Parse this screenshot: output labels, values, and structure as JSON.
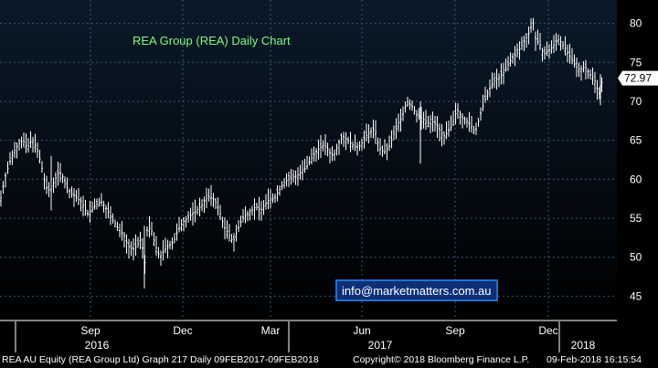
{
  "chart_data": {
    "type": "candlestick",
    "title": "REA Group (REA) Daily Chart",
    "watermark": "info@marketmatters.com.au",
    "last_price": "72.97",
    "y_ticks": [
      "45",
      "50",
      "55",
      "60",
      "65",
      "70",
      "75",
      "80"
    ],
    "ylim": [
      42,
      83
    ],
    "x_month_ticks": [
      "Sep",
      "Dec",
      "Mar",
      "Jun",
      "Sep",
      "Dec"
    ],
    "x_year_labels": [
      "2016",
      "2017",
      "2018"
    ],
    "grid": true,
    "series_color": "#ffffff",
    "grid_color": "#3a5670",
    "background_colors": [
      "#0a1a2a",
      "#000000"
    ],
    "title_color": "#7CFC7C",
    "watermark_border": "#1e6fd0",
    "watermark_bg": "#0c2f78",
    "price_path": [
      [
        0,
        57
      ],
      [
        5,
        60
      ],
      [
        10,
        62
      ],
      [
        15,
        63.5
      ],
      [
        20,
        64.5
      ],
      [
        25,
        65
      ],
      [
        30,
        64
      ],
      [
        35,
        65.2
      ],
      [
        40,
        64
      ],
      [
        45,
        62
      ],
      [
        50,
        59
      ],
      [
        55,
        58.5
      ],
      [
        60,
        60
      ],
      [
        65,
        61
      ],
      [
        70,
        60
      ],
      [
        75,
        58.5
      ],
      [
        80,
        58
      ],
      [
        85,
        57.5
      ],
      [
        90,
        57
      ],
      [
        95,
        55.5
      ],
      [
        100,
        56
      ],
      [
        105,
        56.8
      ],
      [
        110,
        57.2
      ],
      [
        115,
        56.5
      ],
      [
        120,
        55.5
      ],
      [
        125,
        54.5
      ],
      [
        130,
        53.5
      ],
      [
        135,
        53
      ],
      [
        140,
        51.5
      ],
      [
        145,
        51
      ],
      [
        150,
        51.5
      ],
      [
        155,
        52.5
      ],
      [
        158,
        48.5
      ],
      [
        161,
        53.5
      ],
      [
        165,
        53.8
      ],
      [
        170,
        51.5
      ],
      [
        175,
        50
      ],
      [
        180,
        51
      ],
      [
        185,
        51.5
      ],
      [
        190,
        52
      ],
      [
        195,
        53.5
      ],
      [
        200,
        54.5
      ],
      [
        205,
        55
      ],
      [
        210,
        55.5
      ],
      [
        215,
        56
      ],
      [
        220,
        56.5
      ],
      [
        225,
        57.5
      ],
      [
        230,
        57.8
      ],
      [
        235,
        57.3
      ],
      [
        240,
        56
      ],
      [
        245,
        54
      ],
      [
        250,
        53
      ],
      [
        255,
        52
      ],
      [
        260,
        53.5
      ],
      [
        265,
        55
      ],
      [
        270,
        55.5
      ],
      [
        275,
        56
      ],
      [
        280,
        56.5
      ],
      [
        285,
        56
      ],
      [
        290,
        56.8
      ],
      [
        295,
        57.5
      ],
      [
        300,
        57.5
      ],
      [
        305,
        58.5
      ],
      [
        310,
        59.5
      ],
      [
        315,
        60
      ],
      [
        320,
        60.2
      ],
      [
        325,
        60.5
      ],
      [
        330,
        61
      ],
      [
        335,
        61.5
      ],
      [
        340,
        62.5
      ],
      [
        345,
        63.5
      ],
      [
        350,
        64
      ],
      [
        355,
        64.5
      ],
      [
        360,
        63.5
      ],
      [
        365,
        63
      ],
      [
        370,
        64.5
      ],
      [
        375,
        65.5
      ],
      [
        380,
        65
      ],
      [
        385,
        64.5
      ],
      [
        390,
        64
      ],
      [
        395,
        64.5
      ],
      [
        400,
        65.5
      ],
      [
        405,
        66
      ],
      [
        410,
        66.5
      ],
      [
        415,
        64
      ],
      [
        420,
        63.5
      ],
      [
        425,
        64
      ],
      [
        430,
        65.5
      ],
      [
        435,
        67
      ],
      [
        440,
        68
      ],
      [
        445,
        70
      ],
      [
        450,
        69.5
      ],
      [
        455,
        68.5
      ],
      [
        460,
        68
      ],
      [
        465,
        67.5
      ],
      [
        470,
        67
      ],
      [
        475,
        67.5
      ],
      [
        480,
        66.5
      ],
      [
        485,
        65.5
      ],
      [
        490,
        66
      ],
      [
        495,
        67
      ],
      [
        500,
        69
      ],
      [
        505,
        68
      ],
      [
        510,
        67.5
      ],
      [
        515,
        67
      ],
      [
        520,
        66
      ],
      [
        525,
        68
      ],
      [
        530,
        70
      ],
      [
        535,
        71.5
      ],
      [
        540,
        72.5
      ],
      [
        545,
        73
      ],
      [
        550,
        73.5
      ],
      [
        555,
        74.5
      ],
      [
        560,
        75.5
      ],
      [
        565,
        76
      ],
      [
        570,
        77
      ],
      [
        575,
        78
      ],
      [
        580,
        79
      ],
      [
        583,
        80.5
      ],
      [
        586,
        78
      ],
      [
        590,
        77.5
      ],
      [
        595,
        76
      ],
      [
        600,
        76.5
      ],
      [
        605,
        77
      ],
      [
        610,
        78
      ],
      [
        615,
        77.5
      ],
      [
        620,
        76.5
      ],
      [
        625,
        75.5
      ],
      [
        630,
        74.5
      ],
      [
        635,
        74
      ],
      [
        640,
        74.5
      ],
      [
        645,
        73.5
      ],
      [
        650,
        73
      ],
      [
        655,
        71
      ],
      [
        660,
        72.97
      ]
    ]
  },
  "footer": {
    "left": "REA AU Equity (REA Group Ltd) Graph 217  Daily 09FEB2017-09FEB2018",
    "mid": "Copyright© 2018 Bloomberg Finance L.P.",
    "right": "09-Feb-2018 16:15:54"
  }
}
